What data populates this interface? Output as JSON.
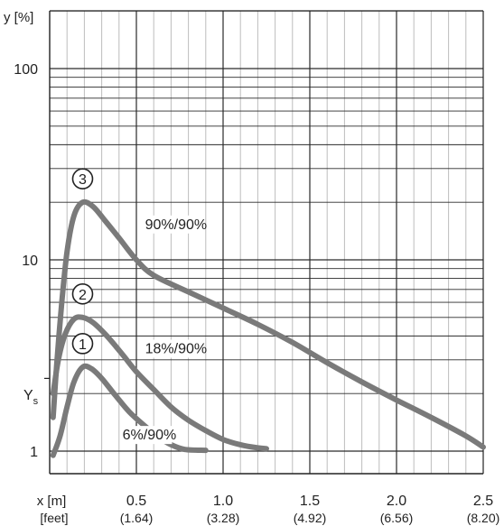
{
  "chart_data": {
    "type": "line",
    "title": "",
    "xlabel": "x [m]",
    "xlabel_secondary": "[feet]",
    "ylabel": "y [%]",
    "y_scale": "log",
    "xlim": [
      0,
      2.5
    ],
    "ylim": [
      1,
      200
    ],
    "grid": true,
    "x_ticks": [
      {
        "value": 0.5,
        "label": "0.5",
        "sub": "(1.64)"
      },
      {
        "value": 1.0,
        "label": "1.0",
        "sub": "(3.28)"
      },
      {
        "value": 1.5,
        "label": "1.5",
        "sub": "(4.92)"
      },
      {
        "value": 2.0,
        "label": "2.0",
        "sub": "(6.56)"
      },
      {
        "value": 2.5,
        "label": "2.5",
        "sub": "(8.20)"
      }
    ],
    "y_ticks": [
      {
        "value": 1,
        "label": "1"
      },
      {
        "value": 10,
        "label": "10"
      },
      {
        "value": 100,
        "label": "100"
      }
    ],
    "ys_marker": {
      "value": 2.4,
      "label": "Y",
      "sub": "s"
    },
    "series": [
      {
        "marker": "3",
        "name": "90%/90%",
        "color": "#7a7a7a",
        "points": [
          [
            0.02,
            1.5
          ],
          [
            0.04,
            2.8
          ],
          [
            0.07,
            6
          ],
          [
            0.1,
            11
          ],
          [
            0.14,
            17
          ],
          [
            0.19,
            20
          ],
          [
            0.25,
            19
          ],
          [
            0.32,
            16
          ],
          [
            0.4,
            13
          ],
          [
            0.5,
            10
          ],
          [
            0.6,
            8.3
          ],
          [
            0.8,
            6.8
          ],
          [
            1.0,
            5.6
          ],
          [
            1.2,
            4.6
          ],
          [
            1.4,
            3.7
          ],
          [
            1.6,
            2.9
          ],
          [
            1.8,
            2.3
          ],
          [
            2.0,
            1.85
          ],
          [
            2.2,
            1.5
          ],
          [
            2.4,
            1.2
          ],
          [
            2.5,
            1.05
          ]
        ]
      },
      {
        "marker": "2",
        "name": "18%/90%",
        "color": "#7a7a7a",
        "points": [
          [
            0.02,
            2
          ],
          [
            0.05,
            3
          ],
          [
            0.09,
            4.1
          ],
          [
            0.14,
            4.9
          ],
          [
            0.19,
            5
          ],
          [
            0.25,
            4.7
          ],
          [
            0.33,
            4
          ],
          [
            0.42,
            3.2
          ],
          [
            0.5,
            2.6
          ],
          [
            0.6,
            2.1
          ],
          [
            0.7,
            1.7
          ],
          [
            0.8,
            1.45
          ],
          [
            0.9,
            1.28
          ],
          [
            1.0,
            1.15
          ],
          [
            1.1,
            1.08
          ],
          [
            1.2,
            1.04
          ],
          [
            1.25,
            1.03
          ]
        ]
      },
      {
        "marker": "1",
        "name": "6%/90%",
        "color": "#7a7a7a",
        "points": [
          [
            0.02,
            0.95
          ],
          [
            0.06,
            1.2
          ],
          [
            0.1,
            1.7
          ],
          [
            0.14,
            2.3
          ],
          [
            0.19,
            2.75
          ],
          [
            0.24,
            2.7
          ],
          [
            0.3,
            2.4
          ],
          [
            0.38,
            1.95
          ],
          [
            0.46,
            1.6
          ],
          [
            0.55,
            1.35
          ],
          [
            0.63,
            1.18
          ],
          [
            0.7,
            1.08
          ],
          [
            0.78,
            1.02
          ],
          [
            0.9,
            1.01
          ]
        ]
      }
    ]
  }
}
